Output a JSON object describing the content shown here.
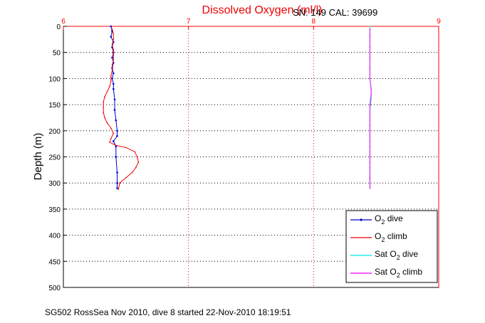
{
  "chart_data": {
    "type": "line",
    "title": "Dissolved Oxygen (ml/l)",
    "subtitle": "SN: 149  CAL: 39699",
    "footer": "SG502 RossSea Nov 2010, dive 8 started 22-Nov-2010 18:19:51",
    "xlabel": "",
    "ylabel": "Depth (m)",
    "xlim": [
      6,
      9
    ],
    "ylim": [
      0,
      500
    ],
    "y_reversed": true,
    "x_ticks": [
      "6",
      "7",
      "8",
      "9"
    ],
    "y_ticks": [
      "0",
      "50",
      "100",
      "150",
      "200",
      "250",
      "300",
      "350",
      "400",
      "450",
      "500"
    ],
    "x_tick_values": [
      6,
      7,
      8,
      9
    ],
    "y_tick_values": [
      0,
      50,
      100,
      150,
      200,
      250,
      300,
      350,
      400,
      450,
      500
    ],
    "grid": true,
    "legend_position": "bottom-right",
    "series": [
      {
        "name": "O2 dive",
        "legend_main": "O",
        "legend_sub": "2",
        "legend_rest": " dive",
        "color": "#0000cc",
        "style": "line-dots",
        "points": [
          [
            6.38,
            0
          ],
          [
            6.39,
            10
          ],
          [
            6.38,
            20
          ],
          [
            6.4,
            30
          ],
          [
            6.39,
            40
          ],
          [
            6.4,
            50
          ],
          [
            6.39,
            60
          ],
          [
            6.4,
            70
          ],
          [
            6.39,
            80
          ],
          [
            6.4,
            90
          ],
          [
            6.39,
            100
          ],
          [
            6.4,
            110
          ],
          [
            6.4,
            120
          ],
          [
            6.41,
            140
          ],
          [
            6.41,
            160
          ],
          [
            6.42,
            180
          ],
          [
            6.43,
            200
          ],
          [
            6.43,
            210
          ],
          [
            6.4,
            220
          ],
          [
            6.42,
            230
          ],
          [
            6.42,
            250
          ],
          [
            6.43,
            280
          ],
          [
            6.43,
            300
          ],
          [
            6.43,
            310
          ]
        ]
      },
      {
        "name": "O2 climb",
        "legend_main": "O",
        "legend_sub": "2",
        "legend_rest": " climb",
        "color": "#ee0000",
        "style": "line",
        "points": [
          [
            6.44,
            312
          ],
          [
            6.45,
            300
          ],
          [
            6.5,
            290
          ],
          [
            6.55,
            280
          ],
          [
            6.58,
            270
          ],
          [
            6.6,
            260
          ],
          [
            6.59,
            250
          ],
          [
            6.57,
            240
          ],
          [
            6.5,
            232
          ],
          [
            6.42,
            228
          ],
          [
            6.37,
            222
          ],
          [
            6.38,
            215
          ],
          [
            6.4,
            205
          ],
          [
            6.38,
            195
          ],
          [
            6.35,
            185
          ],
          [
            6.33,
            175
          ],
          [
            6.32,
            165
          ],
          [
            6.32,
            155
          ],
          [
            6.32,
            145
          ],
          [
            6.33,
            135
          ],
          [
            6.35,
            125
          ],
          [
            6.37,
            115
          ],
          [
            6.38,
            105
          ],
          [
            6.38,
            95
          ],
          [
            6.39,
            85
          ],
          [
            6.39,
            75
          ],
          [
            6.4,
            65
          ],
          [
            6.4,
            55
          ],
          [
            6.4,
            45
          ],
          [
            6.39,
            35
          ],
          [
            6.4,
            25
          ],
          [
            6.4,
            15
          ],
          [
            6.39,
            5
          ]
        ]
      },
      {
        "name": "Sat O2 dive",
        "legend_main": "Sat O",
        "legend_sub": "2",
        "legend_rest": " dive",
        "color": "#00e5e5",
        "style": "line",
        "points": [
          [
            8.45,
            0
          ],
          [
            8.45,
            20
          ],
          [
            8.45,
            40
          ],
          [
            8.45,
            60
          ],
          [
            8.45,
            80
          ],
          [
            8.45,
            100
          ],
          [
            8.46,
            120
          ],
          [
            8.46,
            140
          ],
          [
            8.45,
            160
          ],
          [
            8.45,
            180
          ],
          [
            8.45,
            200
          ],
          [
            8.45,
            220
          ],
          [
            8.45,
            240
          ],
          [
            8.45,
            260
          ],
          [
            8.45,
            280
          ],
          [
            8.45,
            300
          ],
          [
            8.45,
            310
          ]
        ]
      },
      {
        "name": "Sat O2 climb",
        "legend_main": "Sat O",
        "legend_sub": "2",
        "legend_rest": " climb",
        "color": "#ee00ee",
        "style": "line",
        "points": [
          [
            8.45,
            310
          ],
          [
            8.45,
            290
          ],
          [
            8.45,
            270
          ],
          [
            8.45,
            250
          ],
          [
            8.45,
            230
          ],
          [
            8.45,
            210
          ],
          [
            8.45,
            190
          ],
          [
            8.45,
            170
          ],
          [
            8.45,
            150
          ],
          [
            8.46,
            130
          ],
          [
            8.46,
            120
          ],
          [
            8.45,
            100
          ],
          [
            8.45,
            80
          ],
          [
            8.45,
            60
          ],
          [
            8.45,
            40
          ],
          [
            8.45,
            20
          ],
          [
            8.45,
            5
          ]
        ]
      }
    ]
  }
}
